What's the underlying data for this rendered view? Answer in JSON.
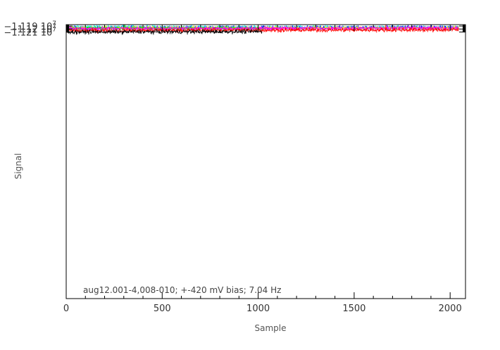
{
  "chart_data": {
    "type": "line",
    "title": "",
    "xlabel": "Sample",
    "ylabel": "Signal",
    "xlim": [
      0,
      2080
    ],
    "ylim": [
      -12109500.0,
      -11185200.0
    ],
    "x_ticks": [
      0,
      500,
      1000,
      1500,
      2000
    ],
    "x_tick_labels": [
      "0",
      "500",
      "1000",
      "1500",
      "2000"
    ],
    "y_ticks": [
      -11190000.0,
      -11200000.0,
      -11210000.0
    ],
    "y_tick_labels": [
      {
        "mantissa": "−1.119 10",
        "exponent": "7"
      },
      {
        "mantissa": "−1.12 10",
        "exponent": "7"
      },
      {
        "mantissa": "−1.121 10",
        "exponent": "7"
      }
    ],
    "annotation": "aug12.001-4,008-010; +-420 mV bias; 7.04 Hz",
    "grid": false,
    "series": [
      {
        "color": "#00ffff",
        "x_range": [
          0,
          2045
        ],
        "start": -11193500.0,
        "end": -11195500.0,
        "amp": 7500
      },
      {
        "color": "#0000ff",
        "x_range": [
          0,
          2045
        ],
        "start": -11196000.0,
        "end": -11194500.0,
        "amp": 7000,
        "spikes": [
          {
            "x": 1520,
            "y": -11187700.0
          }
        ]
      },
      {
        "color": "#ffff00",
        "x_range": [
          0,
          2045
        ],
        "start": -11195500.0,
        "end": -11196000.0,
        "amp": 6000
      },
      {
        "color": "#00ff00",
        "x_range": [
          0,
          1030
        ],
        "start": -11197500.0,
        "end": -11197500.0,
        "amp": 7000,
        "spikes": [
          {
            "x": 305,
            "y": -11185200.0
          }
        ]
      },
      {
        "color": "#ff00ff",
        "x_range": [
          0,
          2045
        ],
        "start": -11197800.0,
        "end": -11197000.0,
        "amp": 6500
      },
      {
        "color": "#ff0000",
        "x_range": [
          0,
          2045
        ],
        "start": -11205000.0,
        "end": -11202500.0,
        "amp": 8000,
        "spikes": [
          {
            "x": 1665,
            "y": -11185200.0
          }
        ]
      },
      {
        "color": "#000000",
        "x_range": [
          0,
          1020
        ],
        "start": -11210000.0,
        "end": -11208500.0,
        "amp": 8000
      }
    ]
  }
}
